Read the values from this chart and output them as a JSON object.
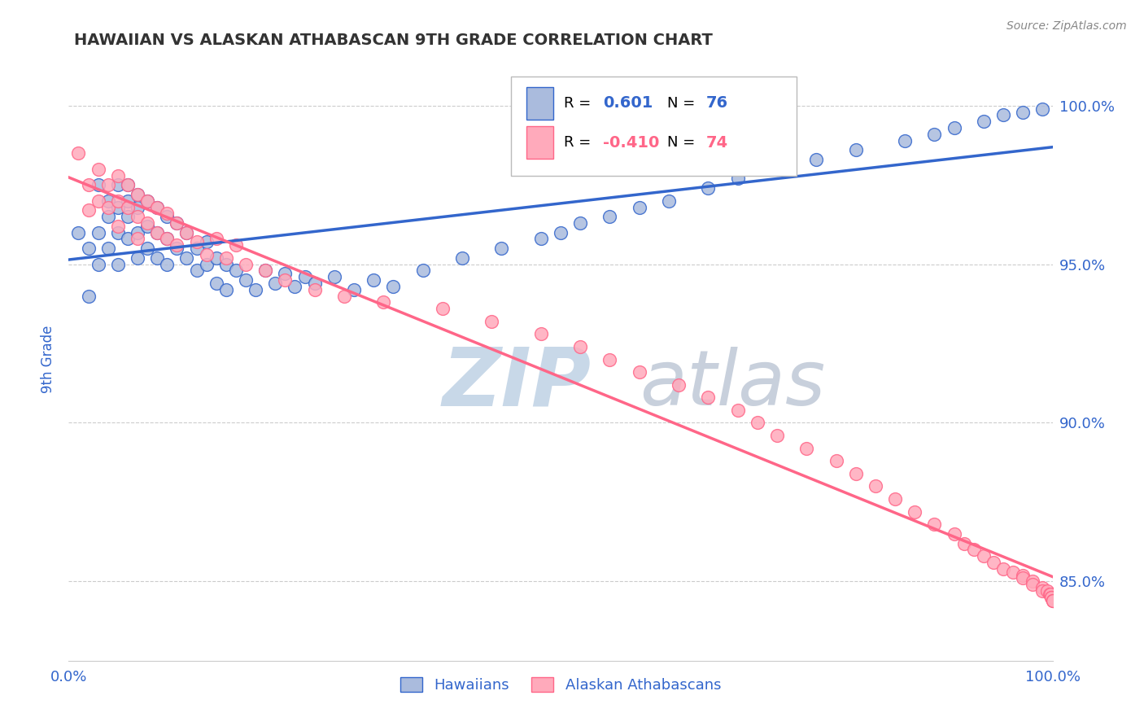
{
  "title": "HAWAIIAN VS ALASKAN ATHABASCAN 9TH GRADE CORRELATION CHART",
  "source_text": "Source: ZipAtlas.com",
  "ylabel": "9th Grade",
  "ytick_labels": [
    "85.0%",
    "90.0%",
    "95.0%",
    "100.0%"
  ],
  "ytick_values": [
    0.85,
    0.9,
    0.95,
    1.0
  ],
  "xmin": 0.0,
  "xmax": 1.0,
  "ymin": 0.825,
  "ymax": 1.015,
  "legend_r_blue": "0.601",
  "legend_n_blue": "76",
  "legend_r_pink": "-0.410",
  "legend_n_pink": "74",
  "blue_color": "#AABBDD",
  "pink_color": "#FFAABB",
  "line_blue": "#3366CC",
  "line_pink": "#FF6688",
  "blue_scatter_x": [
    0.01,
    0.02,
    0.02,
    0.03,
    0.03,
    0.03,
    0.04,
    0.04,
    0.04,
    0.05,
    0.05,
    0.05,
    0.05,
    0.06,
    0.06,
    0.06,
    0.06,
    0.07,
    0.07,
    0.07,
    0.07,
    0.08,
    0.08,
    0.08,
    0.09,
    0.09,
    0.09,
    0.1,
    0.1,
    0.1,
    0.11,
    0.11,
    0.12,
    0.12,
    0.13,
    0.13,
    0.14,
    0.14,
    0.15,
    0.15,
    0.16,
    0.16,
    0.17,
    0.18,
    0.19,
    0.2,
    0.21,
    0.22,
    0.23,
    0.24,
    0.25,
    0.27,
    0.29,
    0.31,
    0.33,
    0.36,
    0.4,
    0.44,
    0.48,
    0.5,
    0.52,
    0.55,
    0.58,
    0.61,
    0.65,
    0.68,
    0.72,
    0.76,
    0.8,
    0.85,
    0.88,
    0.9,
    0.93,
    0.95,
    0.97,
    0.99
  ],
  "blue_scatter_y": [
    0.96,
    0.955,
    0.94,
    0.975,
    0.96,
    0.95,
    0.97,
    0.965,
    0.955,
    0.975,
    0.968,
    0.96,
    0.95,
    0.975,
    0.97,
    0.965,
    0.958,
    0.972,
    0.968,
    0.96,
    0.952,
    0.97,
    0.962,
    0.955,
    0.968,
    0.96,
    0.952,
    0.965,
    0.958,
    0.95,
    0.963,
    0.955,
    0.96,
    0.952,
    0.955,
    0.948,
    0.957,
    0.95,
    0.952,
    0.944,
    0.95,
    0.942,
    0.948,
    0.945,
    0.942,
    0.948,
    0.944,
    0.947,
    0.943,
    0.946,
    0.944,
    0.946,
    0.942,
    0.945,
    0.943,
    0.948,
    0.952,
    0.955,
    0.958,
    0.96,
    0.963,
    0.965,
    0.968,
    0.97,
    0.974,
    0.977,
    0.98,
    0.983,
    0.986,
    0.989,
    0.991,
    0.993,
    0.995,
    0.997,
    0.998,
    0.999
  ],
  "pink_scatter_x": [
    0.01,
    0.02,
    0.02,
    0.03,
    0.03,
    0.04,
    0.04,
    0.05,
    0.05,
    0.05,
    0.06,
    0.06,
    0.07,
    0.07,
    0.07,
    0.08,
    0.08,
    0.09,
    0.09,
    0.1,
    0.1,
    0.11,
    0.11,
    0.12,
    0.13,
    0.14,
    0.15,
    0.16,
    0.17,
    0.18,
    0.2,
    0.22,
    0.25,
    0.28,
    0.32,
    0.38,
    0.43,
    0.48,
    0.52,
    0.55,
    0.58,
    0.62,
    0.65,
    0.68,
    0.7,
    0.72,
    0.75,
    0.78,
    0.8,
    0.82,
    0.84,
    0.86,
    0.88,
    0.9,
    0.91,
    0.92,
    0.93,
    0.94,
    0.95,
    0.96,
    0.97,
    0.97,
    0.98,
    0.98,
    0.99,
    0.99,
    0.995,
    0.997,
    0.998,
    0.999,
    0.999,
    1.0,
    1.0,
    1.0
  ],
  "pink_scatter_y": [
    0.985,
    0.975,
    0.967,
    0.98,
    0.97,
    0.975,
    0.968,
    0.978,
    0.97,
    0.962,
    0.975,
    0.968,
    0.972,
    0.965,
    0.958,
    0.97,
    0.963,
    0.968,
    0.96,
    0.966,
    0.958,
    0.963,
    0.956,
    0.96,
    0.957,
    0.953,
    0.958,
    0.952,
    0.956,
    0.95,
    0.948,
    0.945,
    0.942,
    0.94,
    0.938,
    0.936,
    0.932,
    0.928,
    0.924,
    0.92,
    0.916,
    0.912,
    0.908,
    0.904,
    0.9,
    0.896,
    0.892,
    0.888,
    0.884,
    0.88,
    0.876,
    0.872,
    0.868,
    0.865,
    0.862,
    0.86,
    0.858,
    0.856,
    0.854,
    0.853,
    0.852,
    0.851,
    0.85,
    0.849,
    0.848,
    0.847,
    0.847,
    0.846,
    0.846,
    0.845,
    0.845,
    0.844,
    0.844,
    0.844
  ],
  "watermark_zip": "ZIP",
  "watermark_atlas": "atlas",
  "watermark_zip_color": "#C8D8E8",
  "watermark_atlas_color": "#C8D0DC",
  "grid_color": "#CCCCCC",
  "title_color": "#333333",
  "tick_label_color": "#3366CC",
  "background_color": "#FFFFFF",
  "legend_box_color": "#FFFFFF",
  "legend_border_color": "#BBBBBB"
}
